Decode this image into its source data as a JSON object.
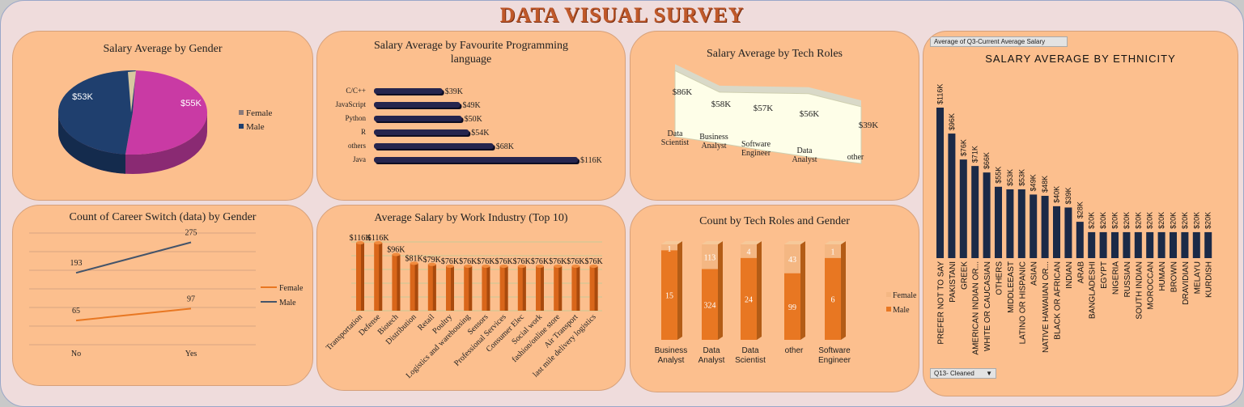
{
  "dashboard": {
    "title": "DATA VISUAL SURVEY"
  },
  "charts": {
    "gender_pie": {
      "title": "Salary Average by Gender",
      "legend": [
        "Female",
        "Male"
      ],
      "labels": [
        "$55K",
        "$53K"
      ],
      "colors": {
        "female": "#c93aa4",
        "male": "#1f3f6e"
      }
    },
    "lang_bar": {
      "title_line1": "Salary Average by Favourite Programming",
      "title_line2": "language",
      "categories": [
        "C/C++",
        "JavaScript",
        "Python",
        "R",
        "others",
        "Java"
      ],
      "labels": [
        "$39K",
        "$49K",
        "$50K",
        "$54K",
        "$68K",
        "$116K"
      ]
    },
    "roles_area": {
      "title": "Salary Average by Tech Roles",
      "categories": [
        [
          "Data",
          "Scientist"
        ],
        [
          "Business",
          "Analyst"
        ],
        [
          "Software",
          "Engineer"
        ],
        [
          "Data",
          "Analyst"
        ],
        [
          "other"
        ]
      ],
      "labels": [
        "$86K",
        "$58K",
        "$57K",
        "$56K",
        "$39K"
      ]
    },
    "ethnicity": {
      "field_button": "Average of Q3-Current Average Salary",
      "title": "SALARY AVERAGE BY ETHNICITY",
      "filter_button": "Q13- Cleaned",
      "categories": [
        "PREFER NOT TO SAY",
        "PAKISTANI",
        "GREEK",
        "AMERICAN INDIAN OR...",
        "WHITE OR CAUCASIAN",
        "OTHERS",
        "MIDDLEEAST",
        "LATINO OR HISPANIC",
        "ASIAN",
        "NATIVE HAWAIIAN OR...",
        "BLACK OR AFRICAN",
        "INDIAN",
        "ARAB",
        "BANGLADESHI",
        "EGYPT",
        "NIGERIA",
        "RUSSIAN",
        "SOUTH INDIAN",
        "MOROCCAN",
        "HUMAN",
        "BROWN",
        "DRAVIDIAN",
        "MELAYU",
        "KURDISH"
      ],
      "labels": [
        "$116K",
        "$96K",
        "$76K",
        "$71K",
        "$66K",
        "$55K",
        "$53K",
        "$53K",
        "$49K",
        "$48K",
        "$40K",
        "$39K",
        "$28K",
        "$20K",
        "$20K",
        "$20K",
        "$20K",
        "$20K",
        "$20K",
        "$20K",
        "$20K",
        "$20K",
        "$20K",
        "$20K"
      ],
      "color": "#1b2a47"
    },
    "career_switch": {
      "title": "Count of Career Switch (data) by Gender",
      "x": [
        "No",
        "Yes"
      ],
      "legend": [
        "Female",
        "Male"
      ],
      "female_labels": [
        "65",
        "97"
      ],
      "male_labels": [
        "193",
        "275"
      ]
    },
    "industry": {
      "title": "Average Salary by Work Industry (Top 10)",
      "categories": [
        "Transportation",
        "Defense",
        "Biotech",
        "Distribution",
        "Retail",
        "Poultry",
        "Logistics and warehousing",
        "Sensors",
        "Professional Services",
        "Consumer Elec",
        "Social work",
        "fashion/online store",
        "Air Transport",
        "last mile delivery logistics"
      ],
      "labels": [
        "$116K",
        "$116K",
        "$96K",
        "$81K",
        "$79K",
        "$76K",
        "$76K",
        "$76K",
        "$76K",
        "$76K",
        "$76K",
        "$76K",
        "$76K",
        "$76K"
      ]
    },
    "roles_gender": {
      "title": "Count by Tech Roles and Gender",
      "categories": [
        [
          "Business",
          "Analyst"
        ],
        [
          "Data",
          "Analyst"
        ],
        [
          "Data",
          "Scientist"
        ],
        [
          "other"
        ],
        [
          "Software",
          "Engineer"
        ]
      ],
      "legend": [
        "Female",
        "Male"
      ],
      "female_labels": [
        "1",
        "113",
        "4",
        "43",
        "1"
      ],
      "male_labels": [
        "15",
        "324",
        "24",
        "99",
        "6"
      ]
    }
  },
  "chart_data": [
    {
      "type": "pie",
      "title": "Salary Average by Gender",
      "categories": [
        "Female",
        "Male"
      ],
      "values": [
        55,
        53
      ],
      "unit": "$K",
      "legend_position": "right"
    },
    {
      "type": "bar",
      "title": "Salary Average by Favourite Programming language",
      "orientation": "horizontal",
      "categories": [
        "C/C++",
        "JavaScript",
        "Python",
        "R",
        "others",
        "Java"
      ],
      "values": [
        39,
        49,
        50,
        54,
        68,
        116
      ],
      "unit": "$K"
    },
    {
      "type": "area",
      "title": "Salary Average by Tech Roles",
      "categories": [
        "Data Scientist",
        "Business Analyst",
        "Software Engineer",
        "Data Analyst",
        "other"
      ],
      "values": [
        86,
        58,
        57,
        56,
        39
      ],
      "unit": "$K"
    },
    {
      "type": "bar",
      "title": "SALARY AVERAGE BY ETHNICITY",
      "categories": [
        "PREFER NOT TO SAY",
        "PAKISTANI",
        "GREEK",
        "AMERICAN INDIAN OR...",
        "WHITE OR CAUCASIAN",
        "OTHERS",
        "MIDDLEEAST",
        "LATINO OR HISPANIC",
        "ASIAN",
        "NATIVE HAWAIIAN OR...",
        "BLACK OR AFRICAN",
        "INDIAN",
        "ARAB",
        "BANGLADESHI",
        "EGYPT",
        "NIGERIA",
        "RUSSIAN",
        "SOUTH INDIAN",
        "MOROCCAN",
        "HUMAN",
        "BROWN",
        "DRAVIDIAN",
        "MELAYU",
        "KURDISH"
      ],
      "values": [
        116,
        96,
        76,
        71,
        66,
        55,
        53,
        53,
        49,
        48,
        40,
        39,
        28,
        20,
        20,
        20,
        20,
        20,
        20,
        20,
        20,
        20,
        20,
        20
      ],
      "unit": "$K"
    },
    {
      "type": "line",
      "title": "Count of Career Switch (data) by Gender",
      "categories": [
        "No",
        "Yes"
      ],
      "series": [
        {
          "name": "Female",
          "values": [
            65,
            97
          ]
        },
        {
          "name": "Male",
          "values": [
            193,
            275
          ]
        }
      ],
      "ylim": [
        0,
        300
      ],
      "grid": true,
      "legend_position": "right"
    },
    {
      "type": "bar",
      "title": "Average Salary by Work Industry (Top 10)",
      "categories": [
        "Transportation",
        "Defense",
        "Biotech",
        "Distribution",
        "Retail",
        "Poultry",
        "Logistics and warehousing",
        "Sensors",
        "Professional Services",
        "Consumer Elec",
        "Social work",
        "fashion/online store",
        "Air Transport",
        "last mile delivery logistics"
      ],
      "values": [
        116,
        116,
        96,
        81,
        79,
        76,
        76,
        76,
        76,
        76,
        76,
        76,
        76,
        76
      ],
      "unit": "$K",
      "grid": true
    },
    {
      "type": "bar",
      "title": "Count by Tech Roles and Gender",
      "stacked": true,
      "categories": [
        "Business Analyst",
        "Data Analyst",
        "Data Scientist",
        "other",
        "Software Engineer"
      ],
      "series": [
        {
          "name": "Male",
          "values": [
            15,
            324,
            24,
            99,
            6
          ]
        },
        {
          "name": "Female",
          "values": [
            1,
            113,
            4,
            43,
            1
          ]
        }
      ],
      "normalized": true,
      "legend_position": "right"
    }
  ]
}
